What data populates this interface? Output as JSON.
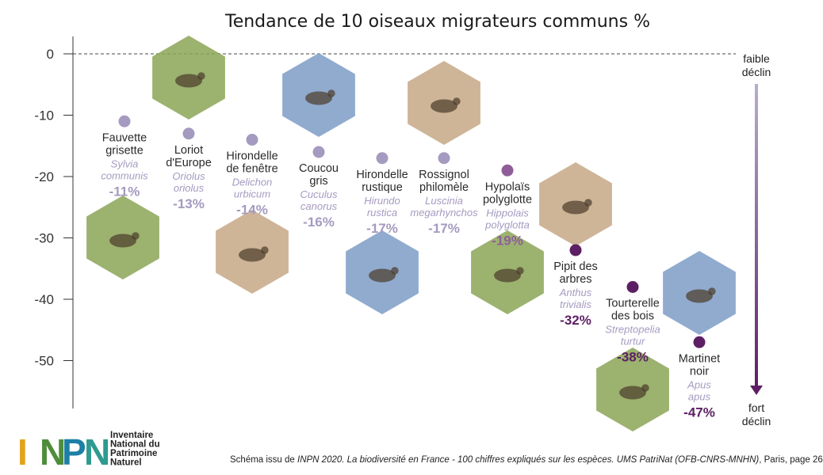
{
  "colors": {
    "light": "#a59ac0",
    "mid": "#8f5e98",
    "dark": "#5d1f63",
    "gradient_top": "#b7aed0",
    "gradient_bottom": "#5d1f63",
    "hex_blue": "#7c9cc6",
    "hex_green": "#8ba456",
    "hex_sand": "#c5a886"
  },
  "chart_data": {
    "type": "scatter",
    "title": "Tendance de 10 oiseaux migrateurs communs %",
    "ylabel": "",
    "ylim": [
      -55,
      0
    ],
    "yticks": [
      0,
      -10,
      -20,
      -30,
      -40,
      -50
    ],
    "zero_line": "dashed",
    "side_labels": {
      "top": [
        "faible",
        "déclin"
      ],
      "bottom": [
        "fort",
        "déclin"
      ]
    },
    "points": [
      {
        "common": [
          "Fauvette",
          "grisette"
        ],
        "latin": [
          "Sylvia",
          "communis"
        ],
        "value": -11,
        "label": "-11%"
      },
      {
        "common": [
          "Loriot",
          "d'Europe"
        ],
        "latin": [
          "Oriolus",
          "oriolus"
        ],
        "value": -13,
        "label": "-13%"
      },
      {
        "common": [
          "Hirondelle",
          "de fenêtre"
        ],
        "latin": [
          "Delichon",
          "urbicum"
        ],
        "value": -14,
        "label": "-14%"
      },
      {
        "common": [
          "Coucou",
          "gris"
        ],
        "latin": [
          "Cuculus",
          "canorus"
        ],
        "value": -16,
        "label": "-16%"
      },
      {
        "common": [
          "Hirondelle",
          "rustique"
        ],
        "latin": [
          "Hirundo",
          "rustica"
        ],
        "value": -17,
        "label": "-17%"
      },
      {
        "common": [
          "Rossignol",
          "philomèle"
        ],
        "latin": [
          "Luscinia",
          "megarhynchos"
        ],
        "value": -17,
        "label": "-17%"
      },
      {
        "common": [
          "Hypolaïs",
          "polyglotte"
        ],
        "latin": [
          "Hippolais",
          "polyglotta"
        ],
        "value": -19,
        "label": "-19%"
      },
      {
        "common": [
          "Pipit des",
          "arbres"
        ],
        "latin": [
          "Anthus",
          "trivialis"
        ],
        "value": -32,
        "label": "-32%"
      },
      {
        "common": [
          "Tourterelle",
          "des bois"
        ],
        "latin": [
          "Streptopelia",
          "turtur"
        ],
        "value": -38,
        "label": "-38%"
      },
      {
        "common": [
          "Martinet",
          "noir"
        ],
        "latin": [
          "Apus",
          "apus"
        ],
        "value": -47,
        "label": "-47%"
      }
    ]
  },
  "logo": {
    "letters": "INPN",
    "text": [
      "Inventaire",
      "National du",
      "Patrimoine",
      "Naturel"
    ]
  },
  "source": {
    "prefix": "Schéma issu de ",
    "italic": "INPN 2020. La biodiversité en France - 100 chiffres expliqués sur les espèces. UMS PatriNat (OFB-CNRS-MNHN)",
    "suffix": ", Paris, page 26"
  }
}
